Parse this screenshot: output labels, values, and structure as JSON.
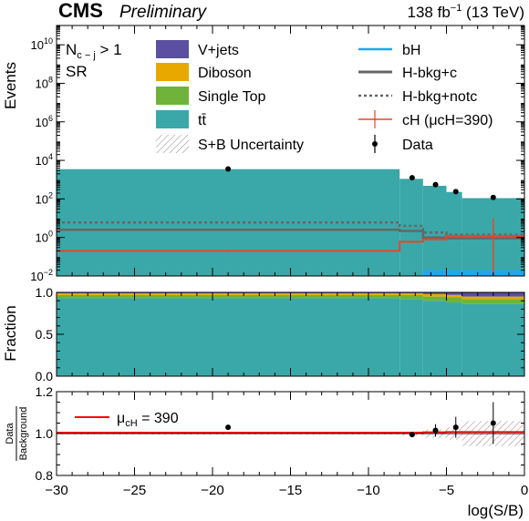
{
  "header": {
    "experiment": "CMS",
    "status": "Preliminary",
    "lumi_prefix": "138 fb",
    "lumi_exp": "−1",
    "lumi_suffix": " (13 TeV)"
  },
  "region": {
    "line1_main": "N",
    "line1_sub": "c − j",
    "line1_tail": " > 1",
    "line2": "SR"
  },
  "colors": {
    "vjets": "#5a4fa0",
    "diboson": "#e8a800",
    "singletop": "#6fb33a",
    "ttbar": "#3aa8a8",
    "bH": "#1ea7f0",
    "hbkg": "#666666",
    "cH": "#e8452a",
    "data": "#000000",
    "mu_line": "#ff0000"
  },
  "legend": {
    "left": [
      {
        "key": "vjets",
        "label": "V+jets"
      },
      {
        "key": "diboson",
        "label": "Diboson"
      },
      {
        "key": "singletop",
        "label": "Single Top"
      },
      {
        "key": "ttbar",
        "label": "tt̄"
      },
      {
        "key": "unc",
        "label": "S+B Uncertainty"
      }
    ],
    "right": [
      {
        "key": "bH",
        "label": "bH"
      },
      {
        "key": "hbkg_c",
        "label": "H-bkg+c"
      },
      {
        "key": "hbkg_notc",
        "label": "H-bkg+notc"
      },
      {
        "key": "cH",
        "label": "cH (μcH=390)"
      },
      {
        "key": "data",
        "label": "Data"
      }
    ]
  },
  "panels": {
    "top_ylabel": "Events",
    "mid_ylabel": "Fraction",
    "bot_ylabel_num": "Data",
    "bot_ylabel_den": "Background",
    "xlabel": "log(S/B)",
    "mu_label": "μ",
    "mu_sub": "cH",
    "mu_value": " = 390"
  },
  "chart_data": {
    "type": "bar",
    "xlabel": "log(S/B)",
    "xlim": [
      -30,
      0
    ],
    "x_ticks": [
      -30,
      -25,
      -20,
      -15,
      -10,
      -5,
      0
    ],
    "x_tick_labels": [
      "−30",
      "−25",
      "−20",
      "−15",
      "−10",
      "−5",
      "0"
    ],
    "bins": [
      [
        -30,
        -8
      ],
      [
        -8,
        -6.5
      ],
      [
        -6.5,
        -5
      ],
      [
        -5,
        -4
      ],
      [
        -4,
        0
      ]
    ],
    "top": {
      "ylabel": "Events",
      "yscale": "log",
      "ylim": [
        0.01,
        100000000000.0
      ],
      "y_ticks": [
        0.01,
        1,
        100,
        10000,
        1000000,
        100000000,
        10000000000
      ],
      "y_tick_base": [
        "10",
        "10",
        "10",
        "10",
        "10",
        "10",
        "10"
      ],
      "y_tick_exp": [
        "−2",
        "0",
        "2",
        "4",
        "6",
        "8",
        "10"
      ],
      "ttbar": [
        3500,
        1100,
        480,
        230,
        110
      ],
      "hbkg_c": [
        2.5,
        2.2,
        1.0,
        0.9,
        0.9
      ],
      "hbkg_notc": [
        6.0,
        4.0,
        1.8,
        1.4,
        1.4
      ],
      "cH": [
        0.2,
        0.6,
        0.8,
        1.2,
        1.2
      ],
      "bH": [
        0.01,
        0.01,
        0.02,
        0.02,
        0.02
      ],
      "data_x": [
        -19,
        -7.2,
        -5.7,
        -4.4,
        -2
      ],
      "data_y": [
        3600,
        1250,
        550,
        240,
        120
      ]
    },
    "middle": {
      "ylabel": "Fraction",
      "ylim": [
        0,
        1
      ],
      "y_ticks": [
        0,
        0.5,
        1
      ],
      "y_tick_labels": [
        "0.0",
        "0.5",
        "1.0"
      ],
      "ttbar": [
        0.93,
        0.92,
        0.9,
        0.88,
        0.86
      ],
      "singletop": [
        0.04,
        0.05,
        0.05,
        0.06,
        0.06
      ],
      "diboson": [
        0.02,
        0.02,
        0.03,
        0.03,
        0.03
      ],
      "vjets": [
        0.01,
        0.01,
        0.02,
        0.03,
        0.05
      ]
    },
    "bottom": {
      "ylabel": "Data / Background",
      "ylim": [
        0.8,
        1.2
      ],
      "y_ticks": [
        0.8,
        1.0,
        1.2
      ],
      "y_tick_labels": [
        "0.8",
        "1.0",
        "1.2"
      ],
      "mu_line": [
        1.005,
        1.005,
        1.007,
        1.008,
        1.008
      ],
      "data_x": [
        -19,
        -7.2,
        -5.7,
        -4.4,
        -2
      ],
      "data_y": [
        1.03,
        0.995,
        1.015,
        1.03,
        1.05
      ],
      "data_err": [
        0.01,
        0.01,
        0.03,
        0.05,
        0.1
      ],
      "unc": [
        0.005,
        0.01,
        0.02,
        0.03,
        0.06
      ]
    }
  }
}
